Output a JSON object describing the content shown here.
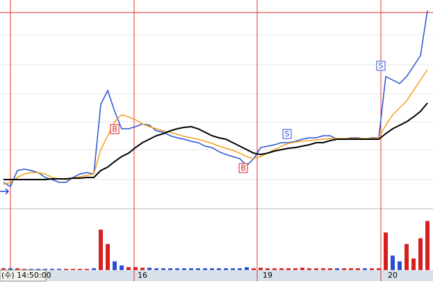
{
  "chart_data": [
    {
      "type": "line",
      "categories": [
        null,
        null,
        null,
        null,
        null,
        null,
        null,
        null,
        null,
        null,
        null,
        null,
        null,
        null,
        null,
        null,
        null,
        null,
        null,
        "16",
        null,
        null,
        null,
        null,
        null,
        null,
        null,
        null,
        null,
        null,
        null,
        null,
        null,
        null,
        null,
        null,
        null,
        "19",
        null,
        null,
        null,
        null,
        null,
        null,
        null,
        null,
        null,
        null,
        null,
        null,
        null,
        null,
        null,
        null,
        null,
        "20",
        null,
        null,
        null,
        null,
        null,
        null
      ],
      "ylim": [
        0,
        300
      ],
      "cursor_label": "(수) 14:50:00",
      "signals": [
        "B",
        "B",
        "S",
        "S"
      ],
      "series": [
        {
          "color": "#2a4fd0",
          "values": [
            38,
            32,
            55,
            57,
            55,
            52,
            45,
            42,
            38,
            38,
            45,
            50,
            52,
            50,
            150,
            170,
            140,
            115,
            115,
            118,
            122,
            120,
            112,
            110,
            105,
            102,
            100,
            97,
            95,
            90,
            88,
            82,
            78,
            75,
            72,
            62,
            72,
            88,
            90,
            92,
            95,
            95,
            97,
            100,
            102,
            102,
            105,
            105,
            100,
            100,
            102,
            102,
            100,
            102,
            102,
            190,
            185,
            180,
            190,
            205,
            220,
            285
          ]
        },
        {
          "color": "#f0a020",
          "values": [
            35,
            38,
            45,
            50,
            52,
            52,
            50,
            45,
            43,
            42,
            44,
            46,
            48,
            50,
            85,
            105,
            125,
            135,
            132,
            128,
            122,
            118,
            115,
            112,
            110,
            107,
            104,
            102,
            100,
            97,
            94,
            90,
            87,
            84,
            80,
            75,
            72,
            75,
            80,
            85,
            90,
            94,
            96,
            97,
            98,
            99,
            100,
            101,
            101,
            101,
            101,
            101,
            101,
            101,
            102,
            120,
            135,
            145,
            155,
            170,
            185,
            200
          ]
        },
        {
          "color": "#000000",
          "values": [
            42,
            42,
            42,
            42,
            42,
            42,
            42,
            43,
            43,
            43,
            44,
            44,
            45,
            45,
            55,
            60,
            68,
            75,
            80,
            88,
            95,
            100,
            105,
            108,
            112,
            115,
            117,
            118,
            115,
            110,
            105,
            102,
            100,
            95,
            90,
            85,
            80,
            78,
            80,
            83,
            85,
            87,
            88,
            90,
            92,
            95,
            95,
            98,
            100,
            100,
            100,
            100,
            100,
            100,
            100,
            108,
            115,
            120,
            125,
            132,
            140,
            152
          ]
        }
      ]
    },
    {
      "type": "bar",
      "ylim": [
        0,
        100
      ],
      "colors": [
        "#d62020",
        "#2a4fd0"
      ],
      "values": [
        3,
        3,
        3,
        2,
        2,
        2,
        2,
        2,
        2,
        2,
        2,
        2,
        2,
        3,
        70,
        45,
        15,
        8,
        5,
        5,
        4,
        4,
        3,
        3,
        3,
        3,
        3,
        3,
        3,
        3,
        3,
        3,
        3,
        3,
        3,
        5,
        3,
        4,
        3,
        3,
        3,
        3,
        3,
        4,
        3,
        3,
        3,
        3,
        3,
        3,
        3,
        3,
        3,
        3,
        3,
        65,
        25,
        15,
        45,
        20,
        55,
        85
      ]
    }
  ]
}
